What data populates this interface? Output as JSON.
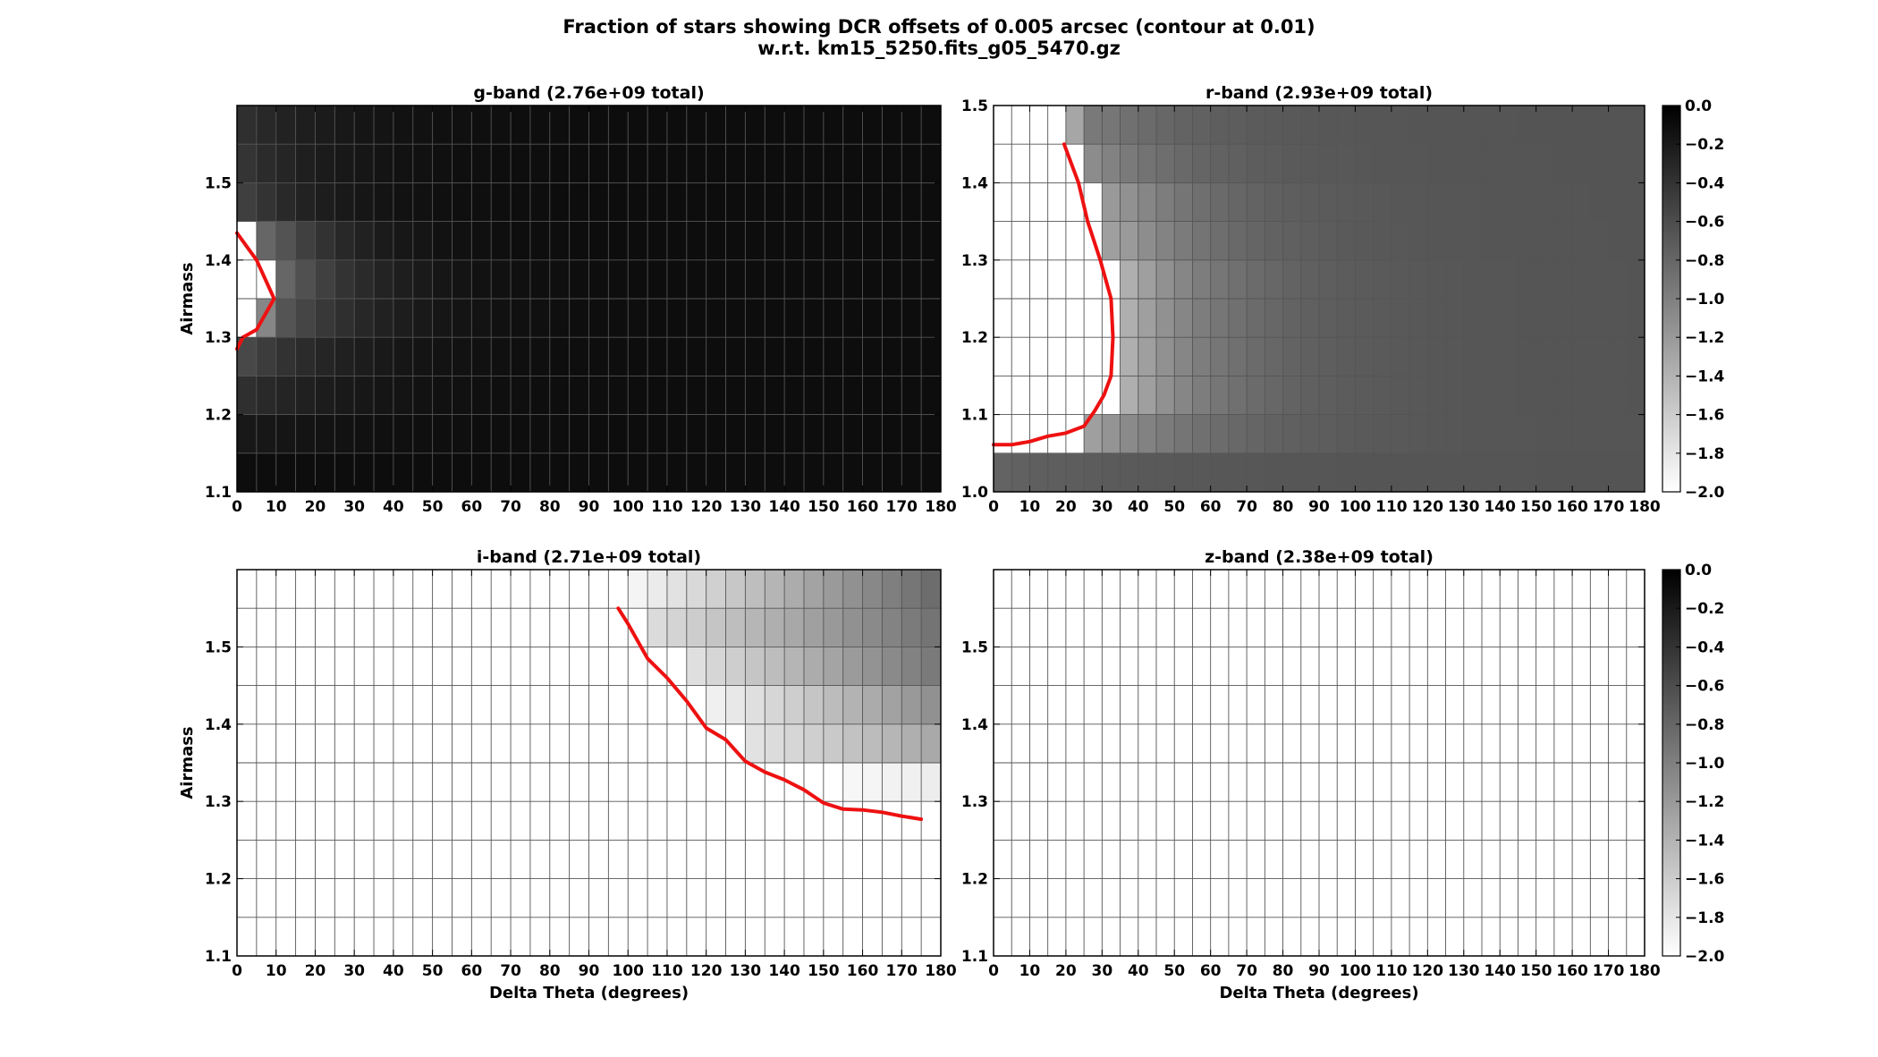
{
  "figure": {
    "title_line1": "Fraction of stars showing DCR offsets of 0.005 arcsec (contour at 0.01)",
    "title_line2": "w.r.t. km15_5250.fits_g05_5470.gz"
  },
  "chart_data": [
    {
      "type": "heatmap",
      "panel": "g-band",
      "title": "g-band (2.76e+09 total)",
      "xlabel": "",
      "ylabel": "Airmass",
      "xlim": [
        0,
        180
      ],
      "ylim": [
        1.1,
        1.6
      ],
      "xticks": [
        0,
        10,
        20,
        30,
        40,
        50,
        60,
        70,
        80,
        90,
        100,
        110,
        120,
        130,
        140,
        150,
        160,
        170,
        180
      ],
      "yticks": [
        1.1,
        1.2,
        1.3,
        1.4,
        1.5
      ],
      "x_bin_edges_start": 0,
      "x_bin_width": 5,
      "y_bin_edges": [
        1.1,
        1.15,
        1.2,
        1.25,
        1.3,
        1.35,
        1.4,
        1.45,
        1.5,
        1.55,
        1.6
      ],
      "grid": true,
      "colorbar": false,
      "color_scale": "log10 fraction, grayscale: 0.0 black, -2.0 white",
      "contour_level": 0.01,
      "contour_color": "#ee1111",
      "row_profile": [
        {
          "y": 1.125,
          "start": -0.1,
          "end": -0.1,
          "tau": 30
        },
        {
          "y": 1.175,
          "start": -0.2,
          "end": -0.1,
          "tau": 30
        },
        {
          "y": 1.225,
          "start": -0.4,
          "end": -0.1,
          "tau": 25
        },
        {
          "y": 1.275,
          "start": -0.62,
          "end": -0.1,
          "tau": 22
        },
        {
          "y": 1.325,
          "start": -1.15,
          "end": -0.1,
          "tau": 20
        },
        {
          "y": 1.375,
          "start": -1.5,
          "end": -0.1,
          "tau": 18
        },
        {
          "y": 1.425,
          "start": -1.3,
          "end": -0.1,
          "tau": 16
        },
        {
          "y": 1.475,
          "start": -0.55,
          "end": -0.1,
          "tau": 18
        },
        {
          "y": 1.525,
          "start": -0.45,
          "end": -0.1,
          "tau": 20
        },
        {
          "y": 1.575,
          "start": -0.4,
          "end": -0.1,
          "tau": 22
        }
      ],
      "overrides": [
        {
          "x": 2.5,
          "y": 1.425,
          "v": -2.0
        },
        {
          "x": 2.5,
          "y": 1.375,
          "v": -2.0
        },
        {
          "x": 7.5,
          "y": 1.375,
          "v": -2.0
        },
        {
          "x": 2.5,
          "y": 1.325,
          "v": -2.0
        },
        {
          "x": 7.5,
          "y": 1.425,
          "v": -0.8
        },
        {
          "x": 7.5,
          "y": 1.325,
          "v": -1.05
        }
      ],
      "contour": [
        {
          "x": 0,
          "y": 1.285
        },
        {
          "x": 1.5,
          "y": 1.3
        },
        {
          "x": 5,
          "y": 1.31
        },
        {
          "x": 9.5,
          "y": 1.35
        },
        {
          "x": 5,
          "y": 1.4
        },
        {
          "x": 0,
          "y": 1.435
        }
      ]
    },
    {
      "type": "heatmap",
      "panel": "r-band",
      "title": "r-band (2.93e+09 total)",
      "xlabel": "",
      "ylabel": "",
      "xlim": [
        0,
        180
      ],
      "ylim": [
        1.0,
        1.5
      ],
      "xticks": [
        0,
        10,
        20,
        30,
        40,
        50,
        60,
        70,
        80,
        90,
        100,
        110,
        120,
        130,
        140,
        150,
        160,
        170,
        180
      ],
      "yticks": [
        1.0,
        1.1,
        1.2,
        1.3,
        1.4,
        1.5
      ],
      "x_bin_edges_start": 0,
      "x_bin_width": 5,
      "y_bin_edges": [
        1.0,
        1.05,
        1.1,
        1.15,
        1.2,
        1.25,
        1.3,
        1.35,
        1.4,
        1.45,
        1.5
      ],
      "grid": true,
      "colorbar": true,
      "colorbar_ticks": [
        "0.0",
        "−0.2",
        "−0.4",
        "−0.6",
        "−0.8",
        "−1.0",
        "−1.2",
        "−1.4",
        "−1.6",
        "−1.8",
        "−2.0"
      ],
      "color_scale": "log10 fraction, grayscale: 0.0 black, -2.0 white",
      "contour_level": 0.01,
      "contour_color": "#ee1111",
      "row_profile": [
        {
          "y": 1.025,
          "start": -0.78,
          "end": -0.66,
          "tau": 40
        },
        {
          "y": 1.075,
          "start": -1.3,
          "end": -0.66,
          "tau": 30,
          "front": 25
        },
        {
          "y": 1.125,
          "start": -1.45,
          "end": -0.66,
          "tau": 25,
          "front": 35
        },
        {
          "y": 1.175,
          "start": -1.45,
          "end": -0.66,
          "tau": 25,
          "front": 35
        },
        {
          "y": 1.225,
          "start": -1.45,
          "end": -0.66,
          "tau": 25,
          "front": 35
        },
        {
          "y": 1.275,
          "start": -1.45,
          "end": -0.66,
          "tau": 25,
          "front": 35
        },
        {
          "y": 1.325,
          "start": -1.4,
          "end": -0.66,
          "tau": 25,
          "front": 30
        },
        {
          "y": 1.375,
          "start": -1.3,
          "end": -0.66,
          "tau": 25,
          "front": 30
        },
        {
          "y": 1.425,
          "start": -1.15,
          "end": -0.66,
          "tau": 25,
          "front": 25
        },
        {
          "y": 1.475,
          "start": -1.1,
          "end": -0.66,
          "tau": 25,
          "front": 20
        }
      ],
      "overrides": [
        {
          "x": 22.5,
          "y": 1.475,
          "v": -1.3
        },
        {
          "x": 27.5,
          "y": 1.475,
          "v": -0.95
        },
        {
          "x": 22.5,
          "y": 1.425,
          "v": -2.0
        },
        {
          "x": 27.5,
          "y": 1.425,
          "v": -1.1
        },
        {
          "x": 27.5,
          "y": 1.375,
          "v": -2.0
        },
        {
          "x": 27.5,
          "y": 1.325,
          "v": -2.0
        },
        {
          "x": 32.5,
          "y": 1.325,
          "v": -1.25
        },
        {
          "x": 32.5,
          "y": 1.375,
          "v": -1.2
        }
      ],
      "contour": [
        {
          "x": 0,
          "y": 1.061
        },
        {
          "x": 5,
          "y": 1.061
        },
        {
          "x": 10,
          "y": 1.065
        },
        {
          "x": 15,
          "y": 1.072
        },
        {
          "x": 20,
          "y": 1.076
        },
        {
          "x": 25,
          "y": 1.085
        },
        {
          "x": 28,
          "y": 1.105
        },
        {
          "x": 30.5,
          "y": 1.125
        },
        {
          "x": 32.5,
          "y": 1.15
        },
        {
          "x": 33,
          "y": 1.2
        },
        {
          "x": 32.5,
          "y": 1.25
        },
        {
          "x": 29.5,
          "y": 1.3
        },
        {
          "x": 26,
          "y": 1.35
        },
        {
          "x": 23.5,
          "y": 1.4
        },
        {
          "x": 19.5,
          "y": 1.45
        }
      ]
    },
    {
      "type": "heatmap",
      "panel": "i-band",
      "title": "i-band (2.71e+09 total)",
      "xlabel": "Delta Theta (degrees)",
      "ylabel": "Airmass",
      "xlim": [
        0,
        180
      ],
      "ylim": [
        1.1,
        1.6
      ],
      "xticks": [
        0,
        10,
        20,
        30,
        40,
        50,
        60,
        70,
        80,
        90,
        100,
        110,
        120,
        130,
        140,
        150,
        160,
        170,
        180
      ],
      "yticks": [
        1.1,
        1.2,
        1.3,
        1.4,
        1.5
      ],
      "x_bin_edges_start": 0,
      "x_bin_width": 5,
      "y_bin_edges": [
        1.1,
        1.15,
        1.2,
        1.25,
        1.3,
        1.35,
        1.4,
        1.45,
        1.5,
        1.55,
        1.6
      ],
      "grid": true,
      "colorbar": false,
      "color_scale": "log10 fraction, grayscale: 0.0 black, -2.0 white",
      "contour_level": 0.01,
      "contour_color": "#ee1111",
      "row_ramps": [
        {
          "y": 1.575,
          "x0": 100,
          "v0": -1.95,
          "x1": 180,
          "v1": -0.82
        },
        {
          "y": 1.525,
          "x0": 105,
          "v0": -1.75,
          "x1": 180,
          "v1": -0.88
        },
        {
          "y": 1.475,
          "x0": 115,
          "v0": -1.78,
          "x1": 180,
          "v1": -0.92
        },
        {
          "y": 1.425,
          "x0": 120,
          "v0": -1.92,
          "x1": 180,
          "v1": -1.1
        },
        {
          "y": 1.375,
          "x0": 130,
          "v0": -1.8,
          "x1": 180,
          "v1": -1.3
        },
        {
          "y": 1.325,
          "x0": 155,
          "v0": -1.95,
          "x1": 180,
          "v1": -1.85
        }
      ],
      "contour": [
        {
          "x": 97.5,
          "y": 1.55
        },
        {
          "x": 100,
          "y": 1.53
        },
        {
          "x": 105,
          "y": 1.485
        },
        {
          "x": 110,
          "y": 1.46
        },
        {
          "x": 115,
          "y": 1.43
        },
        {
          "x": 120,
          "y": 1.395
        },
        {
          "x": 125,
          "y": 1.38
        },
        {
          "x": 130,
          "y": 1.352
        },
        {
          "x": 135,
          "y": 1.338
        },
        {
          "x": 140,
          "y": 1.328
        },
        {
          "x": 145,
          "y": 1.315
        },
        {
          "x": 150,
          "y": 1.298
        },
        {
          "x": 155,
          "y": 1.29
        },
        {
          "x": 160,
          "y": 1.289
        },
        {
          "x": 165,
          "y": 1.286
        },
        {
          "x": 170,
          "y": 1.281
        },
        {
          "x": 175,
          "y": 1.277
        }
      ]
    },
    {
      "type": "heatmap",
      "panel": "z-band",
      "title": "z-band (2.38e+09 total)",
      "xlabel": "Delta Theta (degrees)",
      "ylabel": "",
      "xlim": [
        0,
        180
      ],
      "ylim": [
        1.1,
        1.6
      ],
      "xticks": [
        0,
        10,
        20,
        30,
        40,
        50,
        60,
        70,
        80,
        90,
        100,
        110,
        120,
        130,
        140,
        150,
        160,
        170,
        180
      ],
      "yticks": [
        1.1,
        1.2,
        1.3,
        1.4,
        1.5
      ],
      "x_bin_edges_start": 0,
      "x_bin_width": 5,
      "y_bin_edges": [
        1.1,
        1.15,
        1.2,
        1.25,
        1.3,
        1.35,
        1.4,
        1.45,
        1.5,
        1.55,
        1.6
      ],
      "grid": true,
      "colorbar": true,
      "colorbar_ticks": [
        "0.0",
        "−0.2",
        "−0.4",
        "−0.6",
        "−0.8",
        "−1.0",
        "−1.2",
        "−1.4",
        "−1.6",
        "−1.8",
        "−2.0"
      ],
      "color_scale": "log10 fraction, grayscale: 0.0 black, -2.0 white",
      "contour_level": 0.01,
      "all_cells_value": -2.0,
      "contour": []
    }
  ]
}
